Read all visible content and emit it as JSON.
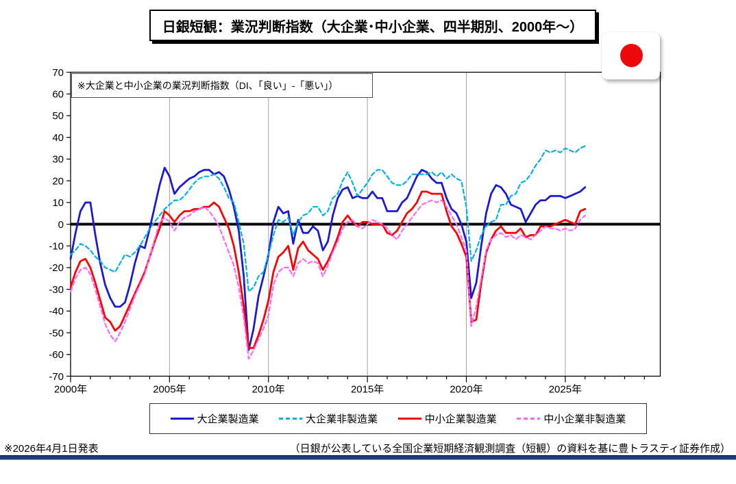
{
  "title": "日銀短観：業況判断指数（大企業･中小企業、四半期別、2000年～）",
  "flag": {
    "label": "japan-flag",
    "circle_color": "#ED0A0A"
  },
  "annotation": "※大企業と中小企業の業況判断指数（DI、「良い」-「悪い」）",
  "footer": {
    "left": "※2026年4月1日発表",
    "right": "（日銀が公表している全国企業短期経済観測調査（短観）の資料を基に豊トラスティ証券作成）",
    "rule_color": "#1F3C87"
  },
  "chart_data": {
    "type": "line",
    "frequency": "quarterly",
    "start_period": "2000Q1",
    "end_period": "2026Q1",
    "x_axis": {
      "tick_label_years": [
        2000,
        2005,
        2010,
        2015,
        2020,
        2025
      ],
      "tick_suffix": "年",
      "min_year": 2000,
      "max_year": 2029.8,
      "gridline_years": [
        2005,
        2010,
        2015,
        2020,
        2025
      ],
      "gridline_color": "#A0A0A0"
    },
    "y_axis": {
      "min": -70,
      "max": 70,
      "step": 10,
      "positive_label_color": "#000000",
      "negative_label_color": "#FF0000",
      "zero_line_color": "#000000"
    },
    "series": [
      {
        "name": "大企業製造業",
        "color": "#1A1AD2",
        "style": "solid",
        "values": [
          -16,
          -4,
          6,
          10,
          10,
          -5,
          -18,
          -28,
          -34,
          -38,
          -38,
          -36,
          -28,
          -18,
          -10,
          -11,
          -2,
          8,
          18,
          26,
          22,
          14,
          17,
          19,
          21,
          22,
          24,
          25,
          25,
          23,
          24,
          22,
          16,
          8,
          -3,
          -24,
          -58,
          -48,
          -33,
          -24,
          -14,
          1,
          8,
          5,
          6,
          -9,
          2,
          -4,
          -4,
          -1,
          -3,
          -12,
          -8,
          4,
          12,
          16,
          17,
          12,
          13,
          12,
          12,
          15,
          12,
          12,
          6,
          6,
          6,
          10,
          12,
          17,
          22,
          25,
          24,
          21,
          19,
          19,
          12,
          7,
          5,
          0,
          -8,
          -34,
          -27,
          -10,
          5,
          14,
          18,
          17,
          14,
          9,
          8,
          7,
          1,
          5,
          9,
          11,
          11,
          13,
          13,
          13,
          12,
          13,
          14,
          15,
          17
        ]
      },
      {
        "name": "大企業非製造業",
        "color": "#00B0F0",
        "style": "dashed",
        "values": [
          -14,
          -12,
          -9,
          -10,
          -12,
          -15,
          -17,
          -20,
          -21,
          -22,
          -18,
          -14,
          -15,
          -13,
          -10,
          -6,
          -2,
          1,
          4,
          7,
          9,
          11,
          11,
          13,
          16,
          19,
          21,
          22,
          22,
          23,
          21,
          17,
          12,
          10,
          1,
          -9,
          -31,
          -29,
          -24,
          -22,
          -14,
          -5,
          2,
          1,
          3,
          -5,
          1,
          4,
          5,
          8,
          8,
          4,
          6,
          12,
          14,
          20,
          24,
          19,
          13,
          16,
          19,
          23,
          25,
          25,
          22,
          19,
          18,
          18,
          20,
          23,
          23,
          23,
          23,
          24,
          22,
          24,
          21,
          23,
          21,
          20,
          8,
          -17,
          -12,
          -5,
          -1,
          1,
          2,
          9,
          9,
          13,
          14,
          19,
          20,
          23,
          27,
          30,
          34,
          33,
          34,
          33,
          35,
          34,
          33,
          35,
          36
        ]
      },
      {
        "name": "中小企業製造業",
        "color": "#FF0000",
        "style": "solid",
        "values": [
          -29,
          -22,
          -17,
          -16,
          -20,
          -27,
          -35,
          -43,
          -45,
          -49,
          -47,
          -42,
          -37,
          -32,
          -27,
          -22,
          -15,
          -8,
          -2,
          6,
          4,
          1,
          4,
          6,
          6,
          7,
          7,
          8,
          8,
          10,
          8,
          3,
          -2,
          -10,
          -22,
          -38,
          -57,
          -57,
          -51,
          -44,
          -35,
          -22,
          -15,
          -13,
          -10,
          -21,
          -11,
          -8,
          -12,
          -14,
          -16,
          -21,
          -17,
          -12,
          -6,
          1,
          4,
          1,
          -1,
          1,
          1,
          0,
          0,
          0,
          -4,
          -5,
          -3,
          1,
          5,
          7,
          10,
          15,
          15,
          14,
          14,
          14,
          6,
          -1,
          -4,
          -9,
          -15,
          -45,
          -44,
          -27,
          -13,
          -7,
          -3,
          -1,
          -4,
          -4,
          -4,
          -2,
          -6,
          -5,
          -5,
          -1,
          -1,
          -1,
          0,
          1,
          2,
          1,
          0,
          6,
          7
        ]
      },
      {
        "name": "中小企業非製造業",
        "color": "#FF66FF",
        "style": "dashed",
        "values": [
          -31,
          -25,
          -21,
          -20,
          -23,
          -30,
          -38,
          -46,
          -51,
          -54,
          -50,
          -45,
          -39,
          -33,
          -28,
          -23,
          -15,
          -7,
          1,
          3,
          1,
          -3,
          1,
          3,
          4,
          6,
          7,
          8,
          6,
          3,
          -1,
          -7,
          -13,
          -19,
          -29,
          -43,
          -62,
          -58,
          -53,
          -48,
          -42,
          -28,
          -22,
          -20,
          -20,
          -24,
          -18,
          -16,
          -18,
          -17,
          -18,
          -24,
          -19,
          -13,
          -8,
          -2,
          1,
          2,
          -1,
          -2,
          0,
          2,
          1,
          0,
          -2,
          -5,
          -7,
          -3,
          0,
          3,
          6,
          9,
          10,
          11,
          10,
          11,
          8,
          4,
          0,
          -6,
          -12,
          -47,
          -38,
          -25,
          -12,
          -7,
          -5,
          -4,
          -6,
          -5,
          -7,
          -5,
          -6,
          -7,
          -5,
          -3,
          -1,
          -2,
          -2,
          -3,
          -2,
          -3,
          -2,
          2,
          4
        ]
      }
    ]
  }
}
